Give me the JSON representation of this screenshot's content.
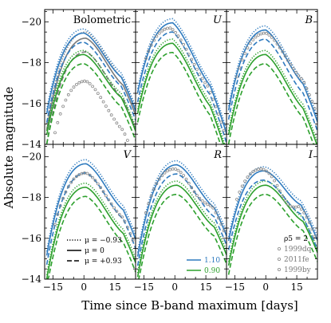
{
  "chart_data": {
    "type": "line",
    "ylabel": "Absolute magnitude",
    "xlabel": "Time since B-band maximum [days]",
    "xlim": [
      -19,
      25
    ],
    "ylim": [
      -20.6,
      -14
    ],
    "y_inverted": true,
    "xticks": [
      -15,
      0,
      15
    ],
    "yticks": [
      -20,
      -18,
      -16,
      -14
    ],
    "colors": {
      "blue": "#2f7bbf",
      "green": "#2ca02c",
      "gray": "#7a7a7a",
      "obs": "#888888"
    },
    "legend_linestyles": [
      {
        "style": "dotted",
        "label": "μ = −0.93"
      },
      {
        "style": "solid",
        "label": "μ = 0"
      },
      {
        "style": "dashed",
        "label": "μ = +0.93"
      }
    ],
    "legend_models": [
      {
        "label": "1.10",
        "color": "#2f7bbf"
      },
      {
        "label": "0.90",
        "color": "#2ca02c"
      }
    ],
    "legend_observations": {
      "header": "ρ5 = 2",
      "items": [
        "1999dq",
        "2011fe",
        "1999by"
      ]
    },
    "panels": [
      {
        "title": "Bolometric",
        "models": {
          "blue": {
            "peak": -19.45,
            "tpeak": 0,
            "decay": 0.055
          },
          "green": {
            "peak": -18.4,
            "tpeak": 0,
            "decay": 0.05
          },
          "gray": {
            "peak": -19.2,
            "tpeak": 1,
            "decay": 0.07
          }
        },
        "obs": {
          "peak": -17.1,
          "tpeak": 1,
          "decay": 0.08,
          "dip": 0
        }
      },
      {
        "title": "U",
        "models": {
          "blue": {
            "peak": -19.95,
            "tpeak": -1,
            "decay": 0.14
          },
          "green": {
            "peak": -18.95,
            "tpeak": -1,
            "decay": 0.14
          }
        },
        "obs": {
          "peak": -19.7,
          "tpeak": -2,
          "decay": 0.12,
          "dip": 0
        }
      },
      {
        "title": "B",
        "models": {
          "blue": {
            "peak": -19.6,
            "tpeak": 0,
            "decay": 0.1
          },
          "green": {
            "peak": -18.4,
            "tpeak": 0,
            "decay": 0.1
          }
        },
        "obs": {
          "peak": -19.45,
          "tpeak": 0,
          "decay": 0.07,
          "dip": 0
        }
      },
      {
        "title": "V",
        "models": {
          "blue": {
            "peak": -19.65,
            "tpeak": 1,
            "decay": 0.065
          },
          "green": {
            "peak": -18.5,
            "tpeak": 1,
            "decay": 0.065
          }
        },
        "obs": {
          "peak": -19.2,
          "tpeak": 1,
          "decay": 0.06,
          "dip": 0
        }
      },
      {
        "title": "R",
        "models": {
          "blue": {
            "peak": -19.6,
            "tpeak": 1,
            "decay": 0.05
          },
          "green": {
            "peak": -18.6,
            "tpeak": 1,
            "decay": 0.045
          }
        },
        "obs": {
          "peak": -19.4,
          "tpeak": 0,
          "decay": 0.035,
          "dip": 0.2
        }
      },
      {
        "title": "I",
        "models": {
          "blue": {
            "peak": -19.3,
            "tpeak": -1,
            "decay": 0.01
          },
          "green": {
            "peak": -18.6,
            "tpeak": 0,
            "decay": 0.02
          }
        },
        "obs": {
          "peak": -19.4,
          "tpeak": -2,
          "decay": 0.03,
          "dip": 0.4
        }
      }
    ]
  }
}
